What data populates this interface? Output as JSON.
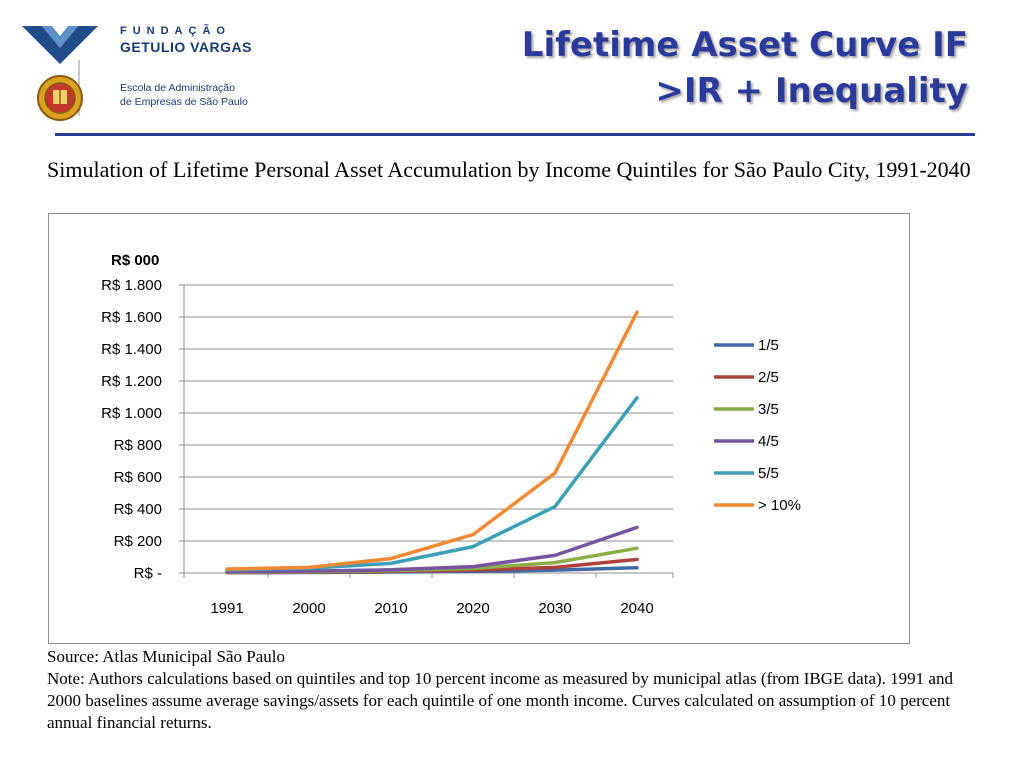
{
  "header": {
    "org_line1": "FUNDAÇÃO",
    "org_line2": "GETULIO VARGAS",
    "school_line1": "Escola de Administração",
    "school_line2": "de Empresas de São Paulo",
    "title_line1": "Lifetime Asset Curve IF",
    "title_line2": ">IR + Inequality"
  },
  "caption": "Simulation of Lifetime Personal Asset Accumulation by Income Quintiles for São Paulo City, 1991-2040",
  "notes": {
    "source": "Source: Atlas Municipal São Paulo",
    "note": "Note: Authors calculations based on quintiles and top 10 percent income as measured by municipal atlas (from IBGE data). 1991 and 2000 baselines assume average savings/assets for each quintile of one month income. Curves calculated on assumption of 10 percent annual financial returns."
  },
  "chart_data": {
    "type": "line",
    "unit_label": "R$ 000",
    "categories": [
      "1991",
      "2000",
      "2010",
      "2020",
      "2030",
      "2040"
    ],
    "ylim": [
      0,
      1800
    ],
    "y_ticks": [
      0,
      200,
      400,
      600,
      800,
      1000,
      1200,
      1400,
      1600,
      1800
    ],
    "y_tick_labels": [
      "R$ -",
      "R$ 200",
      "R$ 400",
      "R$ 600",
      "R$ 800",
      "R$ 1.000",
      "R$ 1.200",
      "R$ 1.400",
      "R$ 1.600",
      "R$ 1.800"
    ],
    "grid": true,
    "legend_position": "right",
    "series": [
      {
        "name": "1/5",
        "color": "#3f6aa8",
        "values": [
          2,
          3,
          6,
          10,
          18,
          33
        ]
      },
      {
        "name": "2/5",
        "color": "#b0403c",
        "values": [
          3,
          5,
          10,
          18,
          35,
          85
        ]
      },
      {
        "name": "3/5",
        "color": "#8aad45",
        "values": [
          5,
          8,
          15,
          28,
          65,
          155
        ]
      },
      {
        "name": "4/5",
        "color": "#7554a0",
        "values": [
          8,
          12,
          20,
          40,
          110,
          285
        ]
      },
      {
        "name": "5/5",
        "color": "#3b9fb8",
        "values": [
          20,
          30,
          60,
          165,
          415,
          1095
        ]
      },
      {
        "name": "> 10%",
        "color": "#ef8a33",
        "values": [
          25,
          35,
          90,
          240,
          625,
          1630
        ]
      }
    ]
  }
}
